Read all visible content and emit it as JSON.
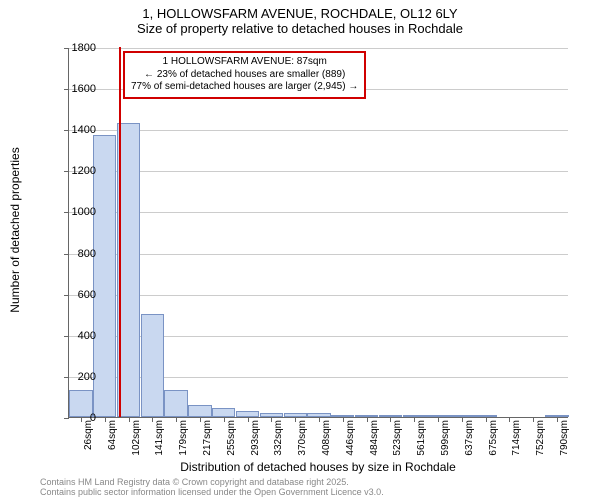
{
  "title": {
    "line1": "1, HOLLOWSFARM AVENUE, ROCHDALE, OL12 6LY",
    "line2": "Size of property relative to detached houses in Rochdale",
    "fontsize": 13
  },
  "chart": {
    "type": "histogram",
    "ylabel": "Number of detached properties",
    "xlabel": "Distribution of detached houses by size in Rochdale",
    "label_fontsize": 12,
    "ylim": [
      0,
      1800
    ],
    "ytick_step": 200,
    "yticks": [
      0,
      200,
      400,
      600,
      800,
      1000,
      1200,
      1400,
      1600,
      1800
    ],
    "xtick_labels": [
      "26sqm",
      "64sqm",
      "102sqm",
      "141sqm",
      "179sqm",
      "217sqm",
      "255sqm",
      "293sqm",
      "332sqm",
      "370sqm",
      "408sqm",
      "446sqm",
      "484sqm",
      "523sqm",
      "561sqm",
      "599sqm",
      "637sqm",
      "675sqm",
      "714sqm",
      "752sqm",
      "790sqm"
    ],
    "bar_values": [
      130,
      1370,
      1430,
      500,
      130,
      60,
      45,
      30,
      20,
      18,
      18,
      10,
      5,
      2,
      2,
      2,
      2,
      2,
      0,
      0,
      2
    ],
    "bar_color": "#c9d8f0",
    "bar_border_color": "#7a93c4",
    "grid_color": "#cccccc",
    "axis_color": "#666666",
    "background_color": "#ffffff",
    "marker": {
      "position_index": 1.6,
      "color": "#d00000",
      "height_value": 1800
    },
    "callout": {
      "border_color": "#d00000",
      "line1": "1 HOLLOWSFARM AVENUE: 87sqm",
      "line2": "← 23% of detached houses are smaller (889)",
      "line3": "77% of semi-detached houses are larger (2,945) →"
    }
  },
  "footer": {
    "line1": "Contains HM Land Registry data © Crown copyright and database right 2025.",
    "line2": "Contains public sector information licensed under the Open Government Licence v3.0.",
    "color": "#888888",
    "fontsize": 9
  }
}
